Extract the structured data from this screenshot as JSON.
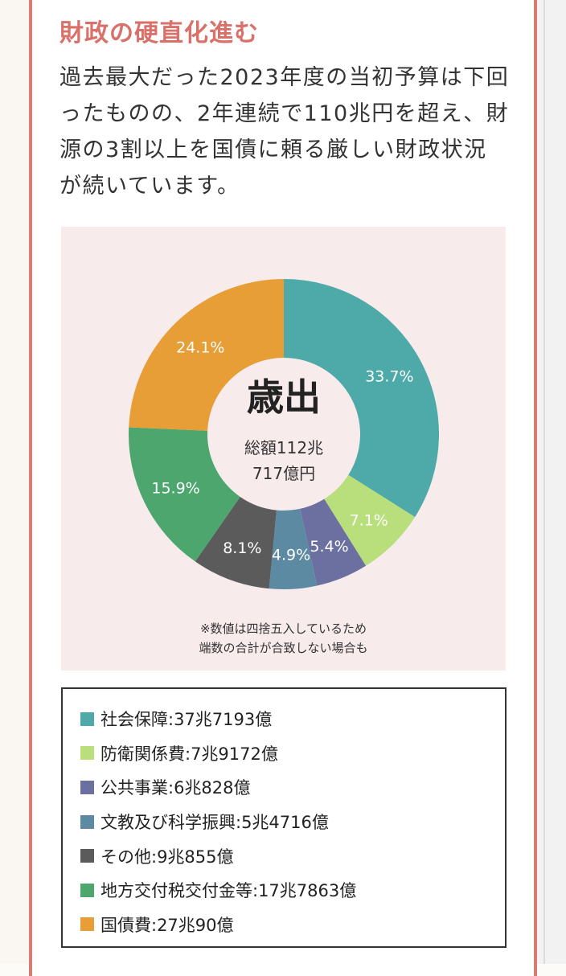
{
  "page": {
    "heading": "財政の硬直化進む",
    "intro": "過去最大だった2023年度の当初予算は下回ったものの、2年連続で110兆円を超え、財源の3割以上を国債に頼る厳しい財政状況が続いています。"
  },
  "chart_data": {
    "type": "pie",
    "title": "歳出",
    "total_line1": "総額112兆",
    "total_line2": "717億円",
    "note_line1": "※数値は四捨五入しているため",
    "note_line2": "端数の合計が合致しない場合も",
    "slices": [
      {
        "name": "社会保障",
        "value": 33.7,
        "label": "33.7%",
        "color": "#4ea9a9",
        "legend": "社会保障:37兆7193億"
      },
      {
        "name": "防衛関係費",
        "value": 7.1,
        "label": "7.1%",
        "color": "#b8df7c",
        "legend": "防衛関係費:7兆9172億"
      },
      {
        "name": "公共事業",
        "value": 5.4,
        "label": "5.4%",
        "color": "#6b70a0",
        "legend": "公共事業:6兆828億"
      },
      {
        "name": "文教及び科学振興",
        "value": 4.9,
        "label": "4.9%",
        "color": "#5c8aa3",
        "legend": "文教及び科学振興:5兆4716億"
      },
      {
        "name": "その他",
        "value": 8.1,
        "label": "8.1%",
        "color": "#5b5b5b",
        "legend": "その他:9兆855億"
      },
      {
        "name": "地方交付税交付金等",
        "value": 15.9,
        "label": "15.9%",
        "color": "#4ea66f",
        "legend": "地方交付税交付金等:17兆7863億"
      },
      {
        "name": "国債費",
        "value": 24.1,
        "label": "24.1%",
        "color": "#e79e36",
        "legend": "国債費:27兆90億"
      }
    ]
  }
}
